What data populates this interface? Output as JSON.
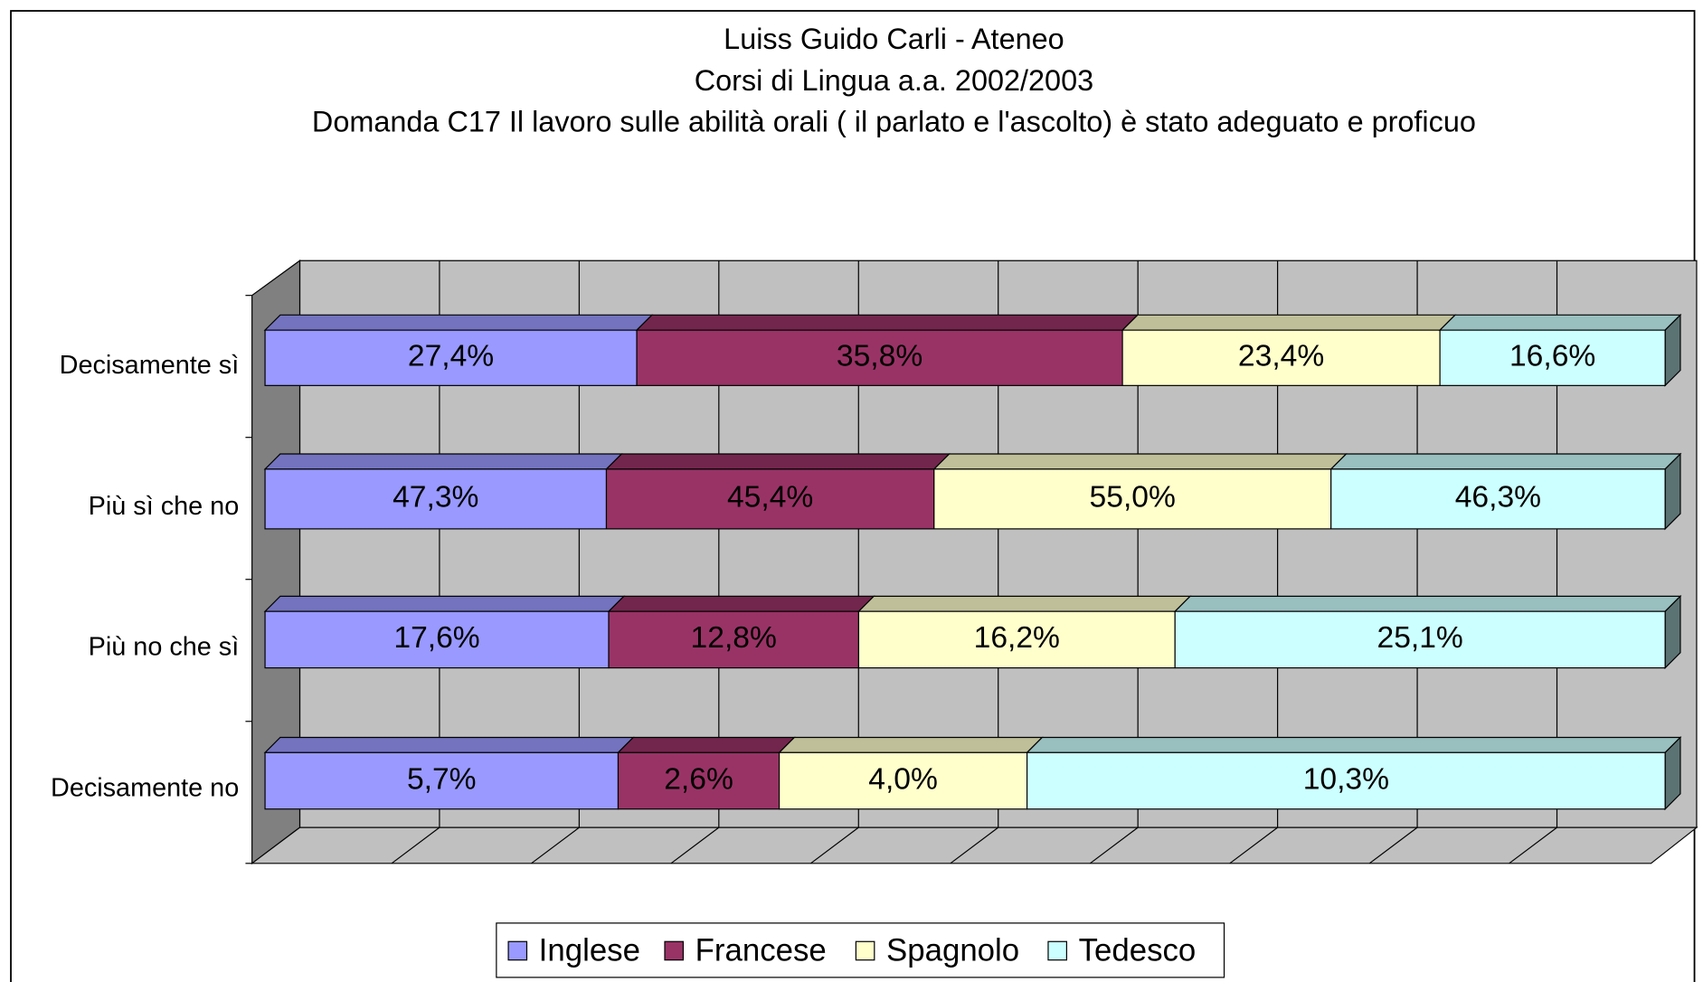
{
  "chart_data": {
    "type": "bar",
    "orientation": "horizontal",
    "stacking": "percent",
    "three_d": true,
    "grid": true,
    "title": [
      "Luiss Guido Carli - Ateneo",
      "Corsi di Lingua a.a. 2002/2003",
      "Domanda C17 Il lavoro sulle abilità orali ( il parlato e l'ascolto) è stato adeguato e proficuo"
    ],
    "categories": [
      "Decisamente sì",
      "Più sì che no",
      "Più no che sì",
      "Decisamente no"
    ],
    "legend": "bottom",
    "series": [
      {
        "name": "Inglese",
        "color": "#9999ff",
        "values": [
          27.4,
          47.3,
          17.6,
          5.7
        ],
        "value_labels": [
          "27,4%",
          "47,3%",
          "17,6%",
          "5,7%"
        ]
      },
      {
        "name": "Francese",
        "color": "#993366",
        "values": [
          35.8,
          45.4,
          12.8,
          2.6
        ],
        "value_labels": [
          "35,8%",
          "45,4%",
          "12,8%",
          "2,6%"
        ]
      },
      {
        "name": "Spagnolo",
        "color": "#ffffcc",
        "values": [
          23.4,
          55.0,
          16.2,
          4.0
        ],
        "value_labels": [
          "23,4%",
          "55,0%",
          "16,2%",
          "4,0%"
        ]
      },
      {
        "name": "Tedesco",
        "color": "#ccffff",
        "values": [
          16.6,
          46.3,
          25.1,
          10.3
        ],
        "value_labels": [
          "16,6%",
          "46,3%",
          "25,1%",
          "10,3%"
        ]
      }
    ]
  }
}
